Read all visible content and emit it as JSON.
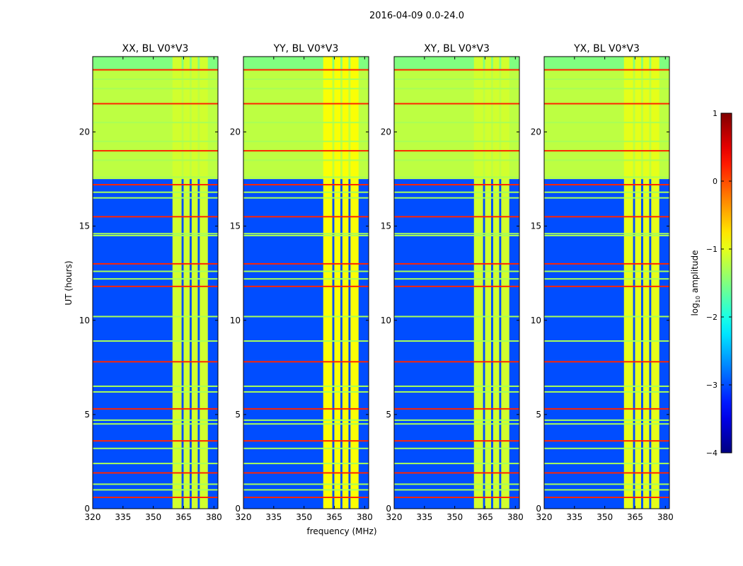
{
  "figure_title": "2016-04-09 0.0-24.0",
  "chart_data": {
    "type": "heatmap",
    "title": "2016-04-09 0.0-24.0",
    "xlabel": "frequency (MHz)",
    "ylabel": "UT (hours)",
    "xlim": [
      320,
      382
    ],
    "ylim": [
      0,
      24
    ],
    "x_ticks": [
      320,
      335,
      350,
      365,
      380
    ],
    "y_ticks": [
      0,
      5,
      10,
      15,
      20
    ],
    "panels": [
      {
        "title": "XX, BL V0*V3",
        "pol": "XX",
        "bright_bands_mhz": [
          [
            359.5,
            364
          ],
          [
            365,
            368
          ],
          [
            369,
            372
          ],
          [
            373,
            377
          ]
        ],
        "band_mean_log10": -1.1
      },
      {
        "title": "YY, BL V0*V3",
        "pol": "YY",
        "bright_bands_mhz": [
          [
            359.5,
            364
          ],
          [
            365,
            368
          ],
          [
            369,
            372
          ],
          [
            373,
            377
          ]
        ],
        "band_mean_log10": -0.9
      },
      {
        "title": "XY, BL V0*V3",
        "pol": "XY",
        "bright_bands_mhz": [
          [
            359.5,
            364
          ],
          [
            365,
            368
          ],
          [
            369,
            372
          ],
          [
            373,
            377
          ]
        ],
        "band_mean_log10": -1.1
      },
      {
        "title": "YX, BL V0*V3",
        "pol": "YX",
        "bright_bands_mhz": [
          [
            359.5,
            364
          ],
          [
            365,
            368
          ],
          [
            369,
            372
          ],
          [
            373,
            377
          ]
        ],
        "band_mean_log10": -1.0
      }
    ],
    "background_log10": {
      "ut_0_to_17.5": -3.0,
      "ut_17.5_to_23.3": -1.2,
      "ut_23.3_to_24": -1.5
    },
    "rfi_lines_ut": [
      0.6,
      1.0,
      1.3,
      1.9,
      2.4,
      3.2,
      3.6,
      4.5,
      4.7,
      5.3,
      6.2,
      6.5,
      7.8,
      8.9,
      10.2,
      11.8,
      12.2,
      12.6,
      13.0,
      14.5,
      14.6,
      15.5,
      16.5,
      16.8,
      17.2,
      17.6,
      18.5,
      19.0,
      19.5,
      20.5,
      21.5,
      22.3,
      22.8,
      23.3
    ],
    "colorbar": {
      "label": "log10 amplitude",
      "label_main": "log",
      "label_sub": "10",
      "label_rest": " amplitude",
      "range": [
        -4,
        1
      ],
      "ticks": [
        "1",
        "0",
        "−1",
        "−2",
        "−3",
        "−4"
      ],
      "tick_values": [
        1,
        0,
        -1,
        -2,
        -3,
        -4
      ],
      "colormap": "jet"
    }
  }
}
